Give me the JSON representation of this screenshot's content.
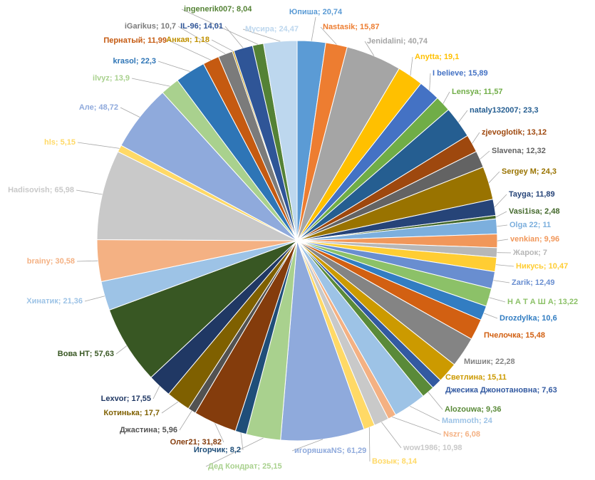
{
  "chart_data": {
    "type": "pie",
    "title": "",
    "start_angle_deg": 0,
    "label_format": "{name}; {value}",
    "slices": [
      {
        "name": "Юпиша",
        "value": "20,74",
        "color": "#5b9bd5"
      },
      {
        "name": "Nastasik",
        "value": "15,87",
        "color": "#ed7d31"
      },
      {
        "name": "Jenidalini",
        "value": "40,74",
        "color": "#a5a5a5"
      },
      {
        "name": "Anytta",
        "value": "19,1",
        "color": "#ffc000"
      },
      {
        "name": "I believe",
        "value": "15,89",
        "color": "#4472c4"
      },
      {
        "name": "Lensya",
        "value": "11,57",
        "color": "#70ad47"
      },
      {
        "name": "nataly132007",
        "value": "23,3",
        "color": "#255e91"
      },
      {
        "name": "zjevoglotik",
        "value": "13,12",
        "color": "#9e480e"
      },
      {
        "name": "Slavena",
        "value": "12,32",
        "color": "#636363"
      },
      {
        "name": "Sergey M",
        "value": "24,3",
        "color": "#997300"
      },
      {
        "name": "Tayga",
        "value": "11,89",
        "color": "#264478"
      },
      {
        "name": "Vasi1isa",
        "value": "2,48",
        "color": "#43682b"
      },
      {
        "name": "Olga 22",
        "value": "11",
        "color": "#7cafdd"
      },
      {
        "name": "venkian",
        "value": "9,96",
        "color": "#f1975a"
      },
      {
        "name": "Жарок",
        "value": "7",
        "color": "#b7b7b7"
      },
      {
        "name": "Никусь",
        "value": "10,47",
        "color": "#ffcd33"
      },
      {
        "name": "Zarik",
        "value": "12,49",
        "color": "#698ed0"
      },
      {
        "name": "Н А Т А Ш А",
        "value": "13,22",
        "color": "#8cc168"
      },
      {
        "name": "Drozdylka",
        "value": "10,6",
        "color": "#327dc2"
      },
      {
        "name": "Пчелочка",
        "value": "15,48",
        "color": "#d26012"
      },
      {
        "name": "Мишик",
        "value": "22,28",
        "color": "#848484"
      },
      {
        "name": "Светлина",
        "value": "15,11",
        "color": "#cc9a00"
      },
      {
        "name": "Джесика Джонотановна",
        "value": "7,63",
        "color": "#335aa1"
      },
      {
        "name": "Alozouwa",
        "value": "9,36",
        "color": "#5a8a39"
      },
      {
        "name": "Mammoth",
        "value": "24",
        "color": "#9dc3e6"
      },
      {
        "name": "Nszr",
        "value": "6,08",
        "color": "#f4b183"
      },
      {
        "name": "wow1986",
        "value": "10,98",
        "color": "#c9c9c9"
      },
      {
        "name": "Возык",
        "value": "8,14",
        "color": "#ffd966"
      },
      {
        "name": "игоряшкаNS",
        "value": "61,29",
        "color": "#8faadc"
      },
      {
        "name": "Дед Кондрат",
        "value": "25,15",
        "color": "#a9d18e"
      },
      {
        "name": "Игорчик",
        "value": "8,2",
        "color": "#1f4e79"
      },
      {
        "name": "Олег21",
        "value": "31,82",
        "color": "#843c0c"
      },
      {
        "name": "Джастина",
        "value": "5,96",
        "color": "#525252"
      },
      {
        "name": "Котинька",
        "value": "17,7",
        "color": "#7f6000"
      },
      {
        "name": "Lexvor",
        "value": "17,55",
        "color": "#203864"
      },
      {
        "name": "Вова НТ",
        "value": "57,63",
        "color": "#385723"
      },
      {
        "name": "Хинатик",
        "value": "21,36",
        "color": "#9dc3e6"
      },
      {
        "name": "brainy",
        "value": "30,58",
        "color": "#f4b183"
      },
      {
        "name": "Hadisovish",
        "value": "65,98",
        "color": "#c9c9c9"
      },
      {
        "name": "hls",
        "value": "5,15",
        "color": "#ffd966"
      },
      {
        "name": "Але",
        "value": "48,72",
        "color": "#8faadc"
      },
      {
        "name": "ilvyz",
        "value": "13,9",
        "color": "#a9d18e"
      },
      {
        "name": "krasol",
        "value": "22,3",
        "color": "#2e75b6"
      },
      {
        "name": "Пернатый",
        "value": "11,99",
        "color": "#c55a11"
      },
      {
        "name": "iGarikus",
        "value": "10,7",
        "color": "#7b7b7b"
      },
      {
        "name": "Анкая",
        "value": "1,18",
        "color": "#bf9000"
      },
      {
        "name": "IL-96",
        "value": "14,01",
        "color": "#2f5597"
      },
      {
        "name": "ingenerik007",
        "value": "8,04",
        "color": "#548235"
      },
      {
        "name": "Мусира",
        "value": "24,47",
        "color": "#bdd7ee"
      }
    ]
  }
}
